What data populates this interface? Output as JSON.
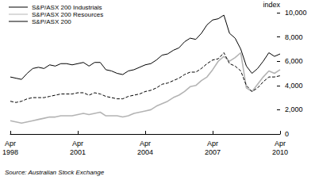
{
  "chart_data": {
    "type": "line",
    "y_label": "index",
    "source": "Source: Australian Stock Exchange",
    "categories": [
      "Apr\n1998",
      null,
      null,
      null,
      null,
      null,
      null,
      null,
      null,
      null,
      null,
      null,
      "Apr\n2001",
      null,
      null,
      null,
      null,
      null,
      null,
      null,
      null,
      null,
      null,
      null,
      "Apr\n2004",
      null,
      null,
      null,
      null,
      null,
      null,
      null,
      null,
      null,
      null,
      null,
      "Apr\n2007",
      null,
      null,
      null,
      null,
      null,
      null,
      null,
      null,
      null,
      null,
      null,
      "Apr\n2010"
    ],
    "series": [
      {
        "name": "S&P/ASX 200 Industrials",
        "color": "#000000",
        "line_style": "solid",
        "values": [
          4700,
          4600,
          4500,
          5000,
          5400,
          5500,
          5400,
          5700,
          5600,
          5800,
          5800,
          5700,
          5800,
          5900,
          5600,
          5900,
          5900,
          5300,
          5200,
          5000,
          4900,
          5200,
          5300,
          5500,
          5700,
          5800,
          6100,
          6500,
          6600,
          6900,
          7100,
          7600,
          7900,
          7800,
          8300,
          9000,
          9400,
          9500,
          9800,
          8300,
          7900,
          7000,
          5600,
          5000,
          5400,
          6000,
          6700,
          6400,
          6600
        ]
      },
      {
        "name": "S&P/ASX 200 Resources",
        "color": "#b4b4b4",
        "line_style": "solid",
        "values": [
          1100,
          1000,
          900,
          1000,
          1100,
          1200,
          1300,
          1400,
          1400,
          1500,
          1500,
          1500,
          1600,
          1700,
          1600,
          1700,
          1800,
          1500,
          1500,
          1500,
          1400,
          1500,
          1700,
          1800,
          1900,
          2000,
          2300,
          2500,
          2700,
          3000,
          3200,
          3500,
          3900,
          4000,
          4400,
          4700,
          5300,
          6000,
          6400,
          6000,
          6300,
          6700,
          3800,
          3500,
          4100,
          4700,
          5200,
          5000,
          5300
        ]
      },
      {
        "name": "S&P/ASX 200",
        "color": "#000000",
        "line_style": "dashed",
        "values": [
          2700,
          2600,
          2700,
          2900,
          3000,
          3000,
          3000,
          3100,
          3200,
          3300,
          3300,
          3300,
          3400,
          3400,
          3200,
          3400,
          3300,
          3100,
          3000,
          2900,
          2900,
          3100,
          3200,
          3300,
          3500,
          3600,
          3800,
          4100,
          4200,
          4400,
          4600,
          4900,
          5100,
          5100,
          5400,
          5800,
          6100,
          6200,
          6700,
          5800,
          5600,
          5200,
          4000,
          3500,
          3800,
          4300,
          4700,
          4700,
          4800
        ]
      }
    ],
    "ylim": [
      0,
      10000
    ],
    "yticks": [
      0,
      2000,
      4000,
      6000,
      8000,
      10000
    ],
    "grid": false,
    "legend": "top-left"
  }
}
